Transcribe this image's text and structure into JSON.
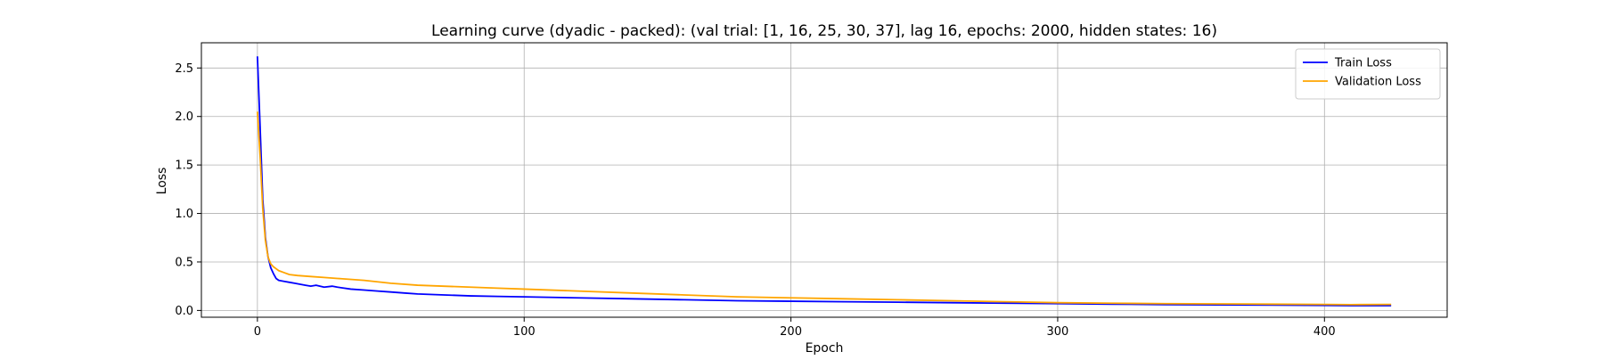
{
  "chart_data": {
    "type": "line",
    "title": "Learning curve (dyadic - packed): (val trial: [1, 16, 25, 30, 37], lag 16, epochs: 2000, hidden states: 16)",
    "xlabel": "Epoch",
    "ylabel": "Loss",
    "xlim": [
      -21,
      446
    ],
    "ylim": [
      -0.07,
      2.76
    ],
    "xticks": [
      0,
      100,
      200,
      300,
      400
    ],
    "yticks": [
      0.0,
      0.5,
      1.0,
      1.5,
      2.0,
      2.5
    ],
    "xtick_labels": [
      "0",
      "100",
      "200",
      "300",
      "400"
    ],
    "ytick_labels": [
      "0.0",
      "0.5",
      "1.0",
      "1.5",
      "2.0",
      "2.5"
    ],
    "grid": true,
    "legend_position": "top-right",
    "series": [
      {
        "name": "Train Loss",
        "color": "#0000ff",
        "points": [
          [
            0,
            2.62
          ],
          [
            1,
            1.9
          ],
          [
            2,
            1.15
          ],
          [
            3,
            0.75
          ],
          [
            4,
            0.55
          ],
          [
            5,
            0.44
          ],
          [
            6,
            0.38
          ],
          [
            7,
            0.33
          ],
          [
            8,
            0.31
          ],
          [
            10,
            0.3
          ],
          [
            12,
            0.29
          ],
          [
            14,
            0.28
          ],
          [
            16,
            0.27
          ],
          [
            18,
            0.26
          ],
          [
            20,
            0.25
          ],
          [
            22,
            0.26
          ],
          [
            25,
            0.24
          ],
          [
            28,
            0.25
          ],
          [
            30,
            0.24
          ],
          [
            35,
            0.22
          ],
          [
            40,
            0.21
          ],
          [
            45,
            0.2
          ],
          [
            50,
            0.19
          ],
          [
            55,
            0.18
          ],
          [
            60,
            0.17
          ],
          [
            70,
            0.16
          ],
          [
            80,
            0.15
          ],
          [
            90,
            0.145
          ],
          [
            100,
            0.14
          ],
          [
            120,
            0.13
          ],
          [
            140,
            0.12
          ],
          [
            160,
            0.11
          ],
          [
            180,
            0.1
          ],
          [
            200,
            0.095
          ],
          [
            220,
            0.09
          ],
          [
            240,
            0.085
          ],
          [
            260,
            0.08
          ],
          [
            280,
            0.075
          ],
          [
            300,
            0.07
          ],
          [
            320,
            0.065
          ],
          [
            340,
            0.06
          ],
          [
            360,
            0.058
          ],
          [
            380,
            0.055
          ],
          [
            400,
            0.052
          ],
          [
            410,
            0.05
          ],
          [
            425,
            0.05
          ]
        ]
      },
      {
        "name": "Validation Loss",
        "color": "#ffa500",
        "points": [
          [
            0,
            2.05
          ],
          [
            1,
            1.6
          ],
          [
            2,
            1.05
          ],
          [
            3,
            0.72
          ],
          [
            4,
            0.55
          ],
          [
            5,
            0.48
          ],
          [
            6,
            0.45
          ],
          [
            7,
            0.43
          ],
          [
            8,
            0.41
          ],
          [
            10,
            0.39
          ],
          [
            12,
            0.37
          ],
          [
            15,
            0.36
          ],
          [
            20,
            0.35
          ],
          [
            25,
            0.34
          ],
          [
            30,
            0.33
          ],
          [
            40,
            0.31
          ],
          [
            50,
            0.28
          ],
          [
            60,
            0.26
          ],
          [
            70,
            0.25
          ],
          [
            80,
            0.24
          ],
          [
            90,
            0.23
          ],
          [
            100,
            0.22
          ],
          [
            120,
            0.2
          ],
          [
            140,
            0.18
          ],
          [
            160,
            0.16
          ],
          [
            180,
            0.14
          ],
          [
            200,
            0.13
          ],
          [
            220,
            0.12
          ],
          [
            240,
            0.11
          ],
          [
            260,
            0.1
          ],
          [
            280,
            0.09
          ],
          [
            300,
            0.08
          ],
          [
            320,
            0.075
          ],
          [
            340,
            0.07
          ],
          [
            360,
            0.068
          ],
          [
            380,
            0.065
          ],
          [
            400,
            0.062
          ],
          [
            410,
            0.06
          ],
          [
            425,
            0.062
          ]
        ]
      }
    ]
  }
}
